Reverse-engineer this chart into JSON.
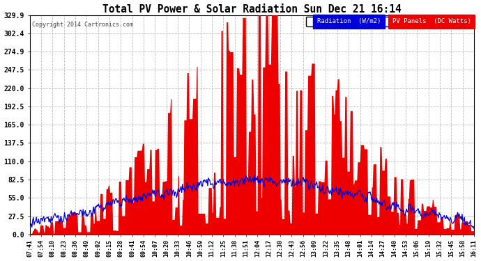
{
  "title": "Total PV Power & Solar Radiation Sun Dec 21 16:14",
  "copyright": "Copyright 2014 Cartronics.com",
  "legend_radiation": "Radiation  (W/m2)",
  "legend_pv": "PV Panels  (DC Watts)",
  "yticks": [
    0.0,
    27.5,
    55.0,
    82.5,
    110.0,
    137.5,
    165.0,
    192.5,
    220.0,
    247.5,
    274.9,
    302.4,
    329.9
  ],
  "ymax": 329.9,
  "ymin": 0.0,
  "background_color": "#ffffff",
  "plot_bg_color": "#ffffff",
  "grid_color": "#bbbbbb",
  "pv_color": "#ee0000",
  "radiation_color": "#0000dd",
  "xtick_labels": [
    "07:41",
    "07:54",
    "08:10",
    "08:23",
    "08:36",
    "08:49",
    "09:02",
    "09:15",
    "09:28",
    "09:41",
    "09:54",
    "10:07",
    "10:20",
    "10:33",
    "10:46",
    "10:59",
    "11:12",
    "11:25",
    "11:38",
    "11:51",
    "12:04",
    "12:17",
    "12:30",
    "12:43",
    "12:56",
    "13:09",
    "13:22",
    "13:35",
    "13:48",
    "14:01",
    "14:14",
    "14:27",
    "14:40",
    "14:53",
    "15:06",
    "15:19",
    "15:32",
    "15:45",
    "15:58",
    "16:11"
  ],
  "figsize": [
    6.9,
    3.75
  ],
  "dpi": 100
}
